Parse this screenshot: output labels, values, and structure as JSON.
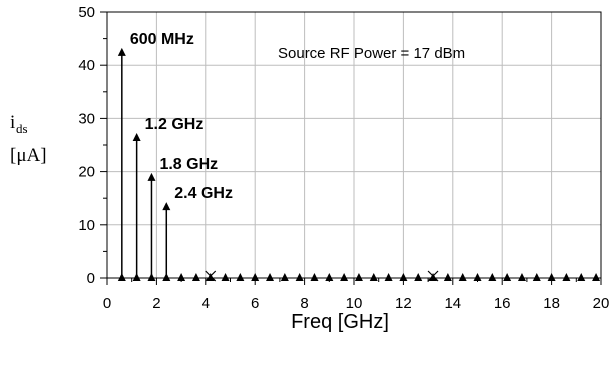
{
  "chart_data": {
    "type": "stem",
    "xlabel": "Freq [GHz]",
    "ylabel_main": "i",
    "ylabel_sub": "ds",
    "ylabel_unit": "[μA]",
    "xlim": [
      0,
      20
    ],
    "ylim": [
      0,
      50
    ],
    "xticks": [
      0,
      2,
      4,
      6,
      8,
      10,
      12,
      14,
      16,
      18,
      20
    ],
    "yticks": [
      0,
      10,
      20,
      30,
      40,
      50
    ],
    "grid": true,
    "annotation": "Source RF Power = 17 dBm",
    "stems": [
      {
        "x": 0.6,
        "y": 42.5,
        "label": "600 MHz"
      },
      {
        "x": 1.2,
        "y": 26.5,
        "label": "1.2 GHz"
      },
      {
        "x": 1.8,
        "y": 19.0,
        "label": "1.8 GHz"
      },
      {
        "x": 2.4,
        "y": 13.5,
        "label": "2.4 GHz"
      }
    ],
    "baseline_triangles_x": [
      0.6,
      1.2,
      1.8,
      2.4,
      3.0,
      3.6,
      4.2,
      4.8,
      5.4,
      6.0,
      6.6,
      7.2,
      7.8,
      8.4,
      9.0,
      9.6,
      10.2,
      10.8,
      11.4,
      12.0,
      12.6,
      13.2,
      13.8,
      14.4,
      15.0,
      15.6,
      16.2,
      16.8,
      17.4,
      18.0,
      18.6,
      19.2,
      19.8
    ],
    "x_markers": [
      4.2,
      13.2
    ]
  }
}
